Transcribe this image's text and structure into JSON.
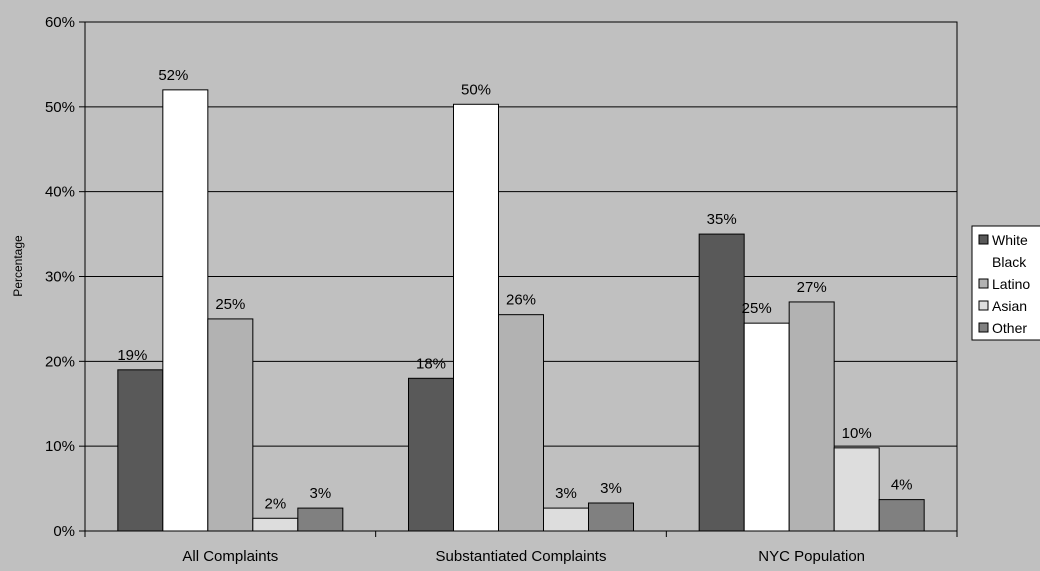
{
  "chart_data": {
    "type": "bar",
    "ylabel": "Percentage",
    "ylim": [
      0,
      60
    ],
    "yticks": [
      "0%",
      "10%",
      "20%",
      "30%",
      "40%",
      "50%",
      "60%"
    ],
    "grid": true,
    "legend_position": "right",
    "categories": [
      "All Complaints",
      "Substantiated Complaints",
      "NYC Population"
    ],
    "series": [
      {
        "name": "White",
        "color": "#595959",
        "values": [
          19,
          18,
          35
        ],
        "labels": [
          "19%",
          "18%",
          "35%"
        ]
      },
      {
        "name": "Black",
        "color": "#ffffff",
        "values": [
          52,
          50.3,
          24.5
        ],
        "labels": [
          "52%",
          "50%",
          "25%"
        ]
      },
      {
        "name": "Latino",
        "color": "#b2b2b2",
        "values": [
          25,
          25.5,
          27
        ],
        "labels": [
          "25%",
          "26%",
          "27%"
        ]
      },
      {
        "name": "Asian",
        "color": "#dddddd",
        "values": [
          1.5,
          2.7,
          9.8
        ],
        "labels": [
          "2%",
          "3%",
          "10%"
        ]
      },
      {
        "name": "Other",
        "color": "#808080",
        "values": [
          2.7,
          3.3,
          3.7
        ],
        "labels": [
          "3%",
          "3%",
          "4%"
        ]
      }
    ]
  }
}
